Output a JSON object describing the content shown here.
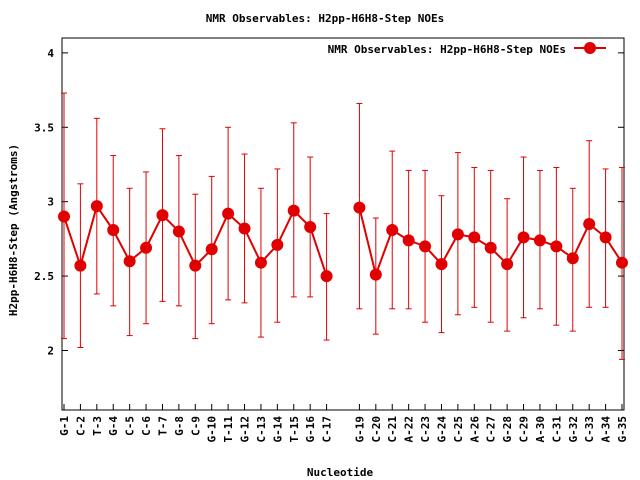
{
  "chart_data": {
    "type": "line",
    "title": "NMR Observables: H2pp-H6H8-Step NOEs",
    "xlabel": "Nucleotide",
    "ylabel": "H2pp-H6H8-Step (Angstroms)",
    "ylim": [
      1.6,
      4.1
    ],
    "yticks": [
      2,
      2.5,
      3,
      3.5,
      4
    ],
    "ytick_labels": [
      "2",
      "2.5",
      "3",
      "3.5",
      "4"
    ],
    "grid": false,
    "legend_position": "top-right",
    "categories": [
      "G-1",
      "C-2",
      "T-3",
      "G-4",
      "C-5",
      "C-6",
      "T-7",
      "G-8",
      "C-9",
      "G-10",
      "T-11",
      "G-12",
      "C-13",
      "G-14",
      "T-15",
      "G-16",
      "C-17",
      "",
      "G-19",
      "C-20",
      "C-21",
      "A-22",
      "C-23",
      "G-24",
      "C-25",
      "A-26",
      "C-27",
      "G-28",
      "C-29",
      "A-30",
      "C-31",
      "G-32",
      "C-33",
      "A-34",
      "G-35"
    ],
    "series": [
      {
        "name": "NMR Observables: H2pp-H6H8-Step NOEs",
        "color": "#e00000",
        "values": [
          2.9,
          2.57,
          2.97,
          2.81,
          2.6,
          2.69,
          2.91,
          2.8,
          2.57,
          2.68,
          2.92,
          2.82,
          2.59,
          2.71,
          2.94,
          2.83,
          2.5,
          null,
          2.96,
          2.51,
          2.81,
          2.74,
          2.7,
          2.58,
          2.78,
          2.76,
          2.69,
          2.58,
          2.76,
          2.74,
          2.7,
          2.62,
          2.85,
          2.76,
          2.59
        ],
        "err_low": [
          2.08,
          2.02,
          2.38,
          2.3,
          2.1,
          2.18,
          2.33,
          2.3,
          2.08,
          2.18,
          2.34,
          2.32,
          2.09,
          2.19,
          2.36,
          2.36,
          2.07,
          null,
          2.28,
          2.11,
          2.28,
          2.28,
          2.19,
          2.12,
          2.24,
          2.29,
          2.19,
          2.13,
          2.22,
          2.28,
          2.17,
          2.13,
          2.29,
          2.29,
          1.94
        ],
        "err_high": [
          3.73,
          3.12,
          3.56,
          3.31,
          3.09,
          3.2,
          3.49,
          3.31,
          3.05,
          3.17,
          3.5,
          3.32,
          3.09,
          3.22,
          3.53,
          3.3,
          2.92,
          null,
          3.66,
          2.89,
          3.34,
          3.21,
          3.21,
          3.04,
          3.33,
          3.23,
          3.21,
          3.02,
          3.3,
          3.21,
          3.23,
          3.09,
          3.41,
          3.22,
          3.23
        ]
      }
    ]
  }
}
